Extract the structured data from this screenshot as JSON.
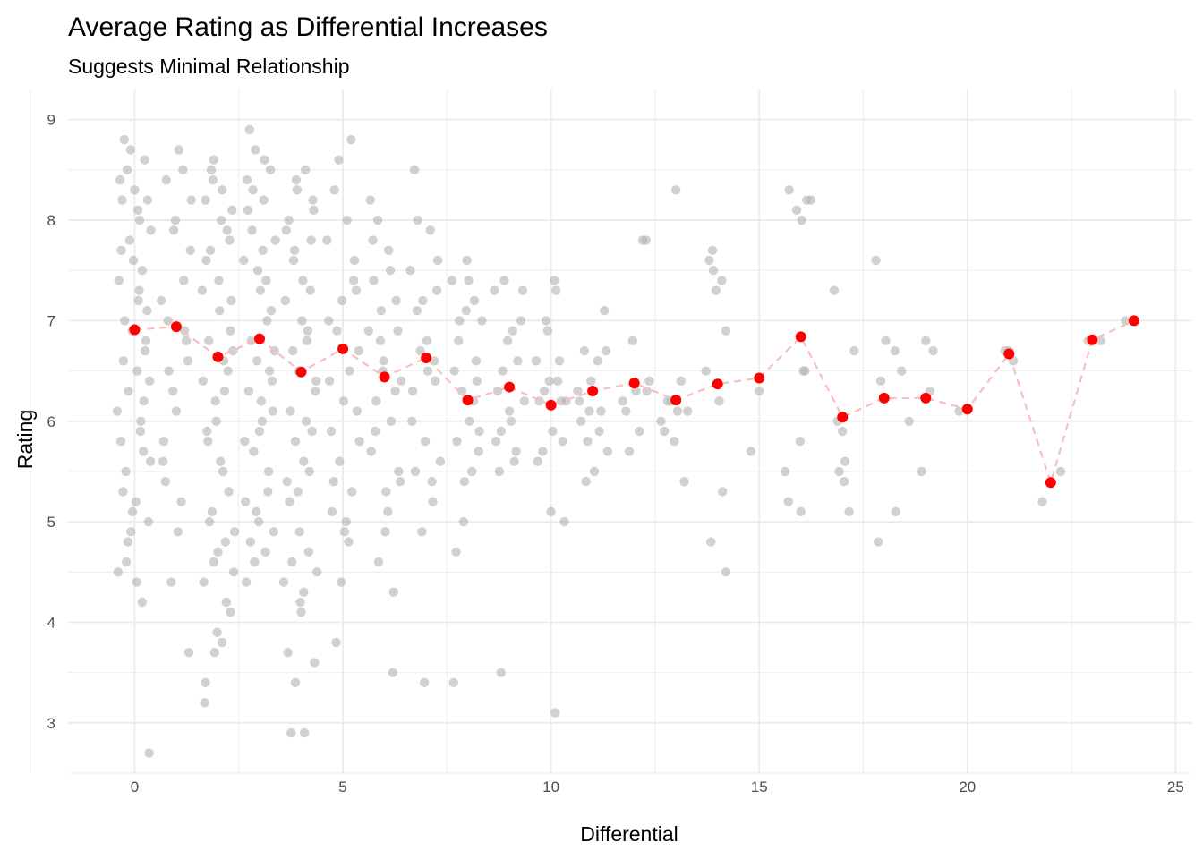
{
  "chart_data": {
    "type": "scatter",
    "title": "Average Rating as Differential Increases",
    "subtitle": "Suggests Minimal Relationship",
    "xlabel": "Differential",
    "ylabel": "Rating",
    "xlim": [
      -1.6,
      25.4
    ],
    "ylim": [
      2.5,
      9.3
    ],
    "x_ticks": [
      0,
      5,
      10,
      15,
      20,
      25
    ],
    "y_ticks": [
      3,
      4,
      5,
      6,
      7,
      8,
      9
    ],
    "x_tick_labels": [
      "0",
      "5",
      "10",
      "15",
      "20",
      "25"
    ],
    "y_tick_labels": [
      "3",
      "4",
      "5",
      "6",
      "7",
      "8",
      "9"
    ],
    "grid": true,
    "colors": {
      "raw_points": "#b3b3b3",
      "mean_points": "#ff0000",
      "mean_line": "#f7bfbf",
      "grid": "#ebebeb",
      "tick_text": "#4d4d4d"
    },
    "mean_series": {
      "x": [
        0,
        1,
        2,
        3,
        4,
        5,
        6,
        7,
        8,
        9,
        10,
        11,
        12,
        13,
        14,
        15,
        16,
        17,
        18,
        19,
        20,
        21,
        22,
        23,
        24
      ],
      "y": [
        6.91,
        6.94,
        6.64,
        6.82,
        6.49,
        6.72,
        6.44,
        6.63,
        6.21,
        6.34,
        6.16,
        6.3,
        6.38,
        6.21,
        6.37,
        6.43,
        6.84,
        6.04,
        6.23,
        6.23,
        6.12,
        6.67,
        5.39,
        6.81,
        7.0
      ]
    },
    "raw_points": {
      "x": [
        -0.42,
        -0.38,
        -0.33,
        -0.3,
        -0.27,
        -0.24,
        -0.21,
        -0.18,
        -0.15,
        -0.12,
        -0.09,
        -0.06,
        -0.03,
        0.0,
        0.03,
        0.06,
        0.09,
        0.12,
        0.15,
        0.18,
        0.21,
        0.24,
        0.27,
        0.3,
        0.33,
        0.36,
        0.39,
        -0.4,
        -0.35,
        -0.28,
        -0.2,
        -0.1,
        0.05,
        0.14,
        0.22,
        0.31,
        0.38,
        -0.32,
        -0.16,
        0.08,
        0.25,
        -0.05,
        0.18,
        -0.25,
        0.35,
        0.11,
        0.64,
        0.7,
        0.76,
        0.82,
        0.88,
        0.94,
        1.0,
        1.06,
        1.12,
        1.18,
        1.24,
        1.3,
        1.36,
        0.68,
        0.8,
        0.92,
        1.04,
        1.16,
        1.28,
        1.34,
        0.74,
        0.98,
        1.2,
        1.62,
        1.66,
        1.7,
        1.74,
        1.78,
        1.82,
        1.86,
        1.9,
        1.94,
        1.98,
        2.02,
        2.06,
        2.1,
        2.14,
        2.18,
        2.22,
        2.26,
        2.3,
        2.34,
        2.38,
        1.64,
        1.72,
        1.8,
        1.88,
        1.96,
        2.04,
        2.12,
        2.2,
        2.28,
        2.36,
        1.68,
        1.84,
        2.0,
        2.16,
        2.32,
        1.76,
        1.92,
        2.08,
        2.24,
        2.4,
        1.7,
        2.1,
        2.3,
        1.9,
        2.62,
        2.66,
        2.7,
        2.74,
        2.78,
        2.82,
        2.86,
        2.9,
        2.94,
        2.98,
        3.02,
        3.06,
        3.1,
        3.14,
        3.18,
        3.22,
        3.26,
        3.3,
        3.34,
        3.38,
        2.64,
        2.72,
        2.8,
        2.88,
        2.96,
        3.04,
        3.12,
        3.2,
        3.28,
        3.36,
        2.68,
        2.84,
        3.0,
        3.16,
        3.32,
        2.76,
        2.92,
        3.08,
        3.24,
        3.62,
        3.66,
        3.7,
        3.74,
        3.78,
        3.82,
        3.86,
        3.9,
        3.94,
        3.98,
        4.02,
        4.06,
        4.1,
        4.14,
        4.18,
        4.22,
        4.26,
        4.3,
        4.34,
        4.38,
        3.64,
        3.72,
        3.8,
        3.88,
        3.96,
        4.04,
        4.12,
        4.2,
        4.28,
        4.36,
        3.68,
        3.84,
        4.0,
        4.16,
        4.32,
        3.76,
        3.92,
        4.08,
        4.24,
        3.58,
        3.86,
        4.06,
        4.62,
        4.68,
        4.74,
        4.8,
        4.86,
        4.92,
        4.98,
        5.04,
        5.1,
        5.16,
        5.22,
        5.28,
        5.34,
        5.4,
        4.66,
        4.78,
        4.9,
        5.02,
        5.14,
        5.26,
        5.38,
        4.72,
        4.96,
        5.2,
        5.32,
        4.84,
        5.08,
        5.62,
        5.68,
        5.74,
        5.8,
        5.86,
        5.92,
        5.98,
        6.04,
        6.1,
        6.16,
        6.22,
        6.28,
        6.34,
        6.4,
        5.66,
        5.78,
        5.9,
        6.02,
        6.14,
        6.26,
        6.38,
        5.72,
        5.96,
        6.2,
        6.32,
        5.84,
        6.08,
        6.62,
        6.68,
        6.74,
        6.8,
        6.86,
        6.92,
        6.98,
        7.04,
        7.1,
        7.16,
        7.22,
        7.28,
        7.34,
        6.66,
        6.78,
        6.9,
        7.02,
        7.14,
        7.26,
        6.72,
        6.96,
        7.2,
        7.62,
        7.68,
        7.74,
        7.8,
        7.86,
        7.92,
        7.98,
        8.04,
        8.1,
        8.16,
        8.22,
        8.28,
        8.34,
        7.66,
        7.78,
        7.9,
        8.02,
        8.14,
        8.26,
        7.72,
        7.96,
        8.2,
        8.64,
        8.72,
        8.8,
        8.88,
        8.96,
        9.04,
        9.12,
        9.2,
        9.28,
        9.36,
        8.68,
        8.84,
        9.0,
        9.16,
        9.32,
        8.76,
        9.08,
        8.8,
        9.64,
        9.72,
        9.8,
        9.88,
        9.96,
        10.04,
        10.12,
        10.2,
        10.28,
        10.36,
        9.68,
        9.84,
        10.0,
        10.16,
        10.32,
        9.92,
        10.24,
        10.08,
        10.1,
        10.64,
        10.72,
        10.8,
        10.88,
        10.96,
        11.04,
        11.12,
        11.2,
        11.28,
        11.36,
        10.68,
        10.84,
        11.0,
        11.16,
        11.32,
        10.92,
        11.72,
        11.88,
        12.04,
        12.2,
        12.36,
        11.8,
        12.12,
        12.28,
        11.96,
        12.3,
        12.64,
        12.8,
        12.96,
        13.12,
        13.28,
        12.72,
        13.04,
        13.2,
        12.88,
        13.0,
        13.72,
        13.88,
        14.04,
        14.2,
        13.8,
        14.12,
        13.96,
        13.9,
        14.1,
        14.2,
        13.84,
        14.8,
        15.0,
        15.62,
        15.72,
        15.9,
        16.0,
        16.1,
        16.24,
        16.02,
        15.98,
        16.06,
        16.14,
        15.7,
        16.8,
        16.92,
        17.0,
        17.06,
        17.16,
        17.28,
        16.88,
        17.04,
        17.8,
        17.92,
        18.04,
        18.28,
        18.42,
        18.6,
        17.86,
        18.26,
        18.9,
        19.18,
        19.8,
        19.0,
        19.1,
        20.9,
        21.1,
        21.0,
        21.8,
        22.24,
        22.0,
        22.9,
        23.2,
        23.8,
        24.0
      ],
      "y": [
        6.1,
        7.4,
        5.8,
        8.2,
        6.6,
        7.0,
        5.5,
        8.5,
        6.3,
        7.8,
        4.9,
        6.9,
        7.6,
        8.3,
        5.2,
        6.5,
        7.2,
        8.0,
        6.0,
        7.5,
        5.7,
        8.6,
        6.8,
        7.1,
        5.0,
        6.4,
        7.9,
        4.5,
        8.4,
        5.3,
        4.6,
        8.7,
        4.4,
        5.9,
        6.2,
        8.2,
        5.6,
        7.7,
        4.8,
        8.1,
        6.7,
        5.1,
        4.2,
        8.8,
        2.7,
        7.3,
        7.2,
        5.8,
        8.4,
        6.5,
        4.4,
        7.9,
        6.1,
        8.7,
        5.2,
        7.4,
        6.8,
        3.7,
        8.2,
        5.6,
        7.0,
        6.3,
        4.9,
        8.5,
        6.6,
        7.7,
        5.4,
        8.0,
        6.9,
        7.3,
        4.4,
        8.2,
        5.9,
        6.8,
        7.7,
        5.1,
        8.6,
        6.2,
        3.9,
        7.4,
        5.6,
        8.3,
        6.6,
        4.8,
        7.9,
        5.3,
        6.9,
        8.1,
        4.5,
        6.4,
        7.6,
        5.0,
        8.4,
        6.0,
        7.1,
        5.5,
        4.2,
        7.8,
        6.7,
        3.2,
        8.5,
        4.7,
        6.3,
        7.2,
        5.8,
        3.7,
        8.0,
        6.5,
        4.9,
        3.4,
        3.8,
        4.1,
        4.6,
        7.6,
        5.2,
        8.4,
        6.3,
        4.8,
        7.9,
        5.7,
        8.7,
        6.6,
        5.0,
        7.3,
        6.0,
        8.2,
        4.7,
        7.0,
        5.5,
        8.5,
        6.4,
        4.9,
        7.8,
        5.8,
        8.1,
        6.8,
        4.6,
        7.5,
        6.2,
        8.6,
        5.3,
        7.1,
        6.7,
        4.4,
        8.3,
        5.9,
        7.4,
        6.1,
        8.9,
        5.1,
        7.7,
        6.5,
        7.2,
        5.4,
        8.0,
        6.1,
        4.6,
        7.6,
        5.8,
        8.3,
        6.5,
        4.2,
        7.0,
        5.6,
        8.5,
        6.8,
        4.7,
        7.3,
        5.9,
        8.1,
        6.3,
        4.5,
        7.9,
        5.2,
        6.7,
        8.4,
        4.9,
        7.4,
        6.0,
        5.5,
        8.2,
        6.4,
        3.7,
        7.7,
        4.1,
        6.9,
        3.6,
        2.9,
        5.3,
        2.9,
        7.8,
        4.4,
        3.4,
        4.3,
        7.8,
        6.4,
        5.1,
        8.3,
        6.9,
        5.6,
        7.2,
        4.9,
        8.0,
        6.5,
        5.3,
        7.6,
        6.1,
        5.8,
        7.0,
        5.4,
        8.6,
        6.2,
        4.8,
        7.4,
        6.7,
        5.9,
        4.4,
        8.8,
        7.3,
        3.8,
        5.0,
        6.9,
        5.7,
        7.4,
        6.2,
        4.6,
        7.1,
        6.6,
        5.3,
        7.7,
        6.0,
        4.3,
        7.2,
        5.5,
        6.4,
        8.2,
        5.9,
        6.8,
        4.9,
        7.5,
        6.3,
        5.4,
        7.8,
        6.5,
        3.5,
        6.9,
        8.0,
        5.1,
        7.5,
        6.3,
        5.5,
        8.0,
        6.7,
        7.2,
        5.8,
        6.5,
        7.9,
        5.2,
        6.4,
        7.6,
        5.6,
        6.0,
        7.1,
        4.9,
        6.8,
        5.4,
        7.3,
        8.5,
        3.4,
        6.6,
        7.4,
        6.5,
        5.8,
        7.0,
        6.3,
        5.4,
        7.6,
        6.0,
        5.5,
        7.2,
        6.4,
        5.9,
        7.0,
        3.4,
        6.8,
        5.0,
        7.4,
        6.2,
        5.7,
        4.7,
        7.1,
        6.6,
        7.3,
        6.3,
        5.9,
        7.4,
        6.8,
        6.0,
        5.6,
        6.6,
        7.0,
        6.2,
        5.8,
        6.5,
        6.1,
        5.7,
        7.3,
        5.5,
        6.9,
        3.5,
        6.6,
        6.2,
        5.7,
        7.0,
        6.4,
        5.9,
        7.3,
        6.6,
        5.8,
        6.2,
        5.6,
        6.3,
        5.1,
        6.4,
        5.0,
        6.9,
        6.2,
        7.4,
        3.1,
        6.3,
        6.0,
        6.7,
        5.8,
        6.4,
        5.5,
        6.6,
        6.1,
        7.1,
        5.7,
        6.2,
        5.4,
        6.3,
        5.9,
        6.7,
        6.1,
        6.2,
        5.7,
        6.3,
        7.8,
        6.4,
        6.1,
        5.9,
        7.8,
        6.8,
        6.3,
        6.0,
        6.2,
        5.8,
        6.4,
        6.1,
        5.9,
        6.1,
        5.4,
        6.2,
        8.3,
        6.5,
        7.7,
        6.2,
        6.9,
        7.6,
        5.3,
        7.3,
        7.5,
        7.4,
        4.5,
        4.8,
        5.7,
        6.3,
        5.5,
        8.3,
        8.1,
        5.1,
        6.5,
        8.2,
        8.0,
        5.8,
        6.5,
        8.2,
        5.2,
        7.3,
        5.5,
        5.9,
        5.6,
        5.1,
        6.7,
        6.0,
        5.4,
        7.6,
        6.4,
        6.8,
        5.1,
        6.5,
        6.0,
        4.8,
        6.7,
        5.5,
        6.7,
        6.1,
        6.8,
        6.3,
        6.7,
        6.6,
        6.7,
        5.2,
        5.5,
        5.4,
        6.8,
        6.8,
        7.0,
        7.0
      ]
    }
  }
}
